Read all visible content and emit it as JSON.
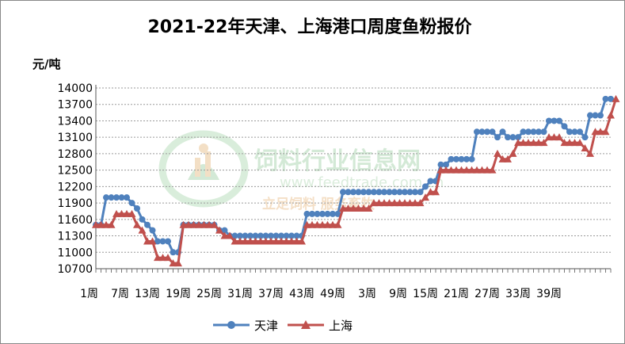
{
  "chart_data": {
    "type": "line",
    "title": "2021-22年天津、上海港口周度鱼粉报价",
    "ylabel": "元/吨",
    "ylim": [
      10700,
      14000
    ],
    "yticks": [
      14000,
      13700,
      13400,
      13100,
      12800,
      12500,
      12200,
      11900,
      11600,
      11300,
      11000,
      10700
    ],
    "x_tick_labels": [
      "1周",
      "7周",
      "13周",
      "19周",
      "25周",
      "31周",
      "37周",
      "43周",
      "49周",
      "3周",
      "9周",
      "15周",
      "21周",
      "27周",
      "33周",
      "39周"
    ],
    "grid": true,
    "legend_position": "bottom",
    "series": [
      {
        "name": "天津",
        "color": "#4f81bd",
        "values": [
          11500,
          11500,
          12000,
          12000,
          12000,
          12000,
          12000,
          11900,
          11800,
          11600,
          11500,
          11400,
          11200,
          11200,
          11200,
          11000,
          11000,
          11500,
          11500,
          11500,
          11500,
          11500,
          11500,
          11500,
          11400,
          11400,
          11300,
          11300,
          11300,
          11300,
          11300,
          11300,
          11300,
          11300,
          11300,
          11300,
          11300,
          11300,
          11300,
          11300,
          11300,
          11700,
          11700,
          11700,
          11700,
          11700,
          11700,
          11700,
          12100,
          12100,
          12100,
          12100,
          12100,
          12100,
          12100,
          12100,
          12100,
          12100,
          12100,
          12100,
          12100,
          12100,
          12100,
          12100,
          12200,
          12300,
          12300,
          12600,
          12600,
          12700,
          12700,
          12700,
          12700,
          12700,
          13200,
          13200,
          13200,
          13200,
          13100,
          13200,
          13100,
          13100,
          13100,
          13200,
          13200,
          13200,
          13200,
          13200,
          13400,
          13400,
          13400,
          13300,
          13200,
          13200,
          13200,
          13100,
          13500,
          13500,
          13500,
          13800,
          13800
        ]
      },
      {
        "name": "上海",
        "color": "#c0504d",
        "values": [
          11500,
          11500,
          11500,
          11500,
          11700,
          11700,
          11700,
          11700,
          11500,
          11400,
          11200,
          11200,
          10900,
          10900,
          10900,
          10800,
          10800,
          11500,
          11500,
          11500,
          11500,
          11500,
          11500,
          11500,
          11400,
          11300,
          11300,
          11200,
          11200,
          11200,
          11200,
          11200,
          11200,
          11200,
          11200,
          11200,
          11200,
          11200,
          11200,
          11200,
          11200,
          11500,
          11500,
          11500,
          11500,
          11500,
          11500,
          11500,
          11800,
          11800,
          11800,
          11800,
          11800,
          11800,
          11900,
          11900,
          11900,
          11900,
          11900,
          11900,
          11900,
          11900,
          11900,
          11900,
          12000,
          12100,
          12100,
          12500,
          12500,
          12500,
          12500,
          12500,
          12500,
          12500,
          12500,
          12500,
          12500,
          12500,
          12800,
          12700,
          12700,
          12800,
          13000,
          13000,
          13000,
          13000,
          13000,
          13000,
          13100,
          13100,
          13100,
          13000,
          13000,
          13000,
          13000,
          12900,
          12800,
          13200,
          13200,
          13200,
          13500,
          13800
        ]
      }
    ]
  }
}
